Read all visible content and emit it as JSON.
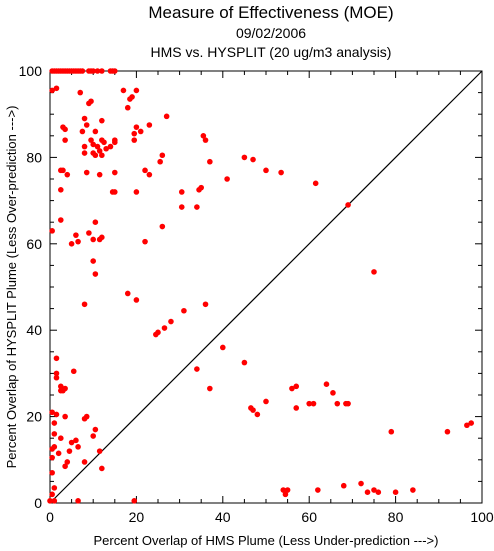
{
  "chart_data": {
    "type": "scatter",
    "title": "Measure of Effectiveness (MOE)",
    "subtitle_lines": [
      "09/02/2006",
      "HMS vs. HYSPLIT  (20 ug/m3 analysis)"
    ],
    "xlabel": "Percent Overlap of HMS Plume (Less Under-prediction --->)",
    "ylabel": "Percent Overlap of HYSPLIT Plume (Less Over-prediction --->)",
    "xlim": [
      0,
      100
    ],
    "ylim": [
      0,
      100
    ],
    "x_ticks": [
      0,
      20,
      40,
      60,
      80,
      100
    ],
    "y_ticks": [
      0,
      20,
      40,
      60,
      80,
      100
    ],
    "grid": false,
    "reference_line": {
      "from": [
        0,
        0
      ],
      "to": [
        100,
        100
      ],
      "color": "#000000"
    },
    "marker_color": "#ff0000",
    "series": [
      {
        "points": [
          [
            0.5,
            100
          ],
          [
            1,
            100
          ],
          [
            1.5,
            100
          ],
          [
            2,
            100
          ],
          [
            2.5,
            100
          ],
          [
            3,
            100
          ],
          [
            3.5,
            100
          ],
          [
            4,
            100
          ],
          [
            4.5,
            100
          ],
          [
            5,
            100
          ],
          [
            5.5,
            100
          ],
          [
            6,
            100
          ],
          [
            6.5,
            100
          ],
          [
            7,
            100
          ],
          [
            7.5,
            100
          ],
          [
            9,
            100
          ],
          [
            9.5,
            100
          ],
          [
            10,
            100
          ],
          [
            11,
            100
          ],
          [
            12,
            100
          ],
          [
            14,
            100
          ],
          [
            14.5,
            100
          ],
          [
            15,
            100
          ],
          [
            0.5,
            95.5
          ],
          [
            1.5,
            96
          ],
          [
            3,
            87
          ],
          [
            3.5,
            86.5
          ],
          [
            3.5,
            84
          ],
          [
            7,
            95
          ],
          [
            8,
            89
          ],
          [
            8.5,
            87.5
          ],
          [
            9,
            92.5
          ],
          [
            9.5,
            93
          ],
          [
            7.5,
            86
          ],
          [
            8,
            82.5
          ],
          [
            8,
            81
          ],
          [
            9.5,
            84
          ],
          [
            10,
            83
          ],
          [
            10,
            81
          ],
          [
            10.5,
            80.5
          ],
          [
            11,
            82.5
          ],
          [
            11.5,
            81.5
          ],
          [
            12,
            84
          ],
          [
            12.5,
            83.5
          ],
          [
            12,
            80.5
          ],
          [
            10.5,
            86
          ],
          [
            12,
            88.5
          ],
          [
            13,
            82
          ],
          [
            14,
            82.5
          ],
          [
            15,
            84
          ],
          [
            15,
            83.5
          ],
          [
            17,
            95.5
          ],
          [
            18,
            91.5
          ],
          [
            18.5,
            93.5
          ],
          [
            19,
            94
          ],
          [
            20,
            95.5
          ],
          [
            19.5,
            85.5
          ],
          [
            19.5,
            84
          ],
          [
            20,
            87
          ],
          [
            21,
            86
          ],
          [
            23,
            87.5
          ],
          [
            27,
            89.5
          ],
          [
            26,
            80.5
          ],
          [
            25.5,
            79
          ],
          [
            22,
            77
          ],
          [
            23,
            76
          ],
          [
            15,
            76.5
          ],
          [
            14.5,
            72
          ],
          [
            15,
            72
          ],
          [
            11.5,
            76
          ],
          [
            8.5,
            76.5
          ],
          [
            2.5,
            77
          ],
          [
            3,
            77
          ],
          [
            2.5,
            72.5
          ],
          [
            2.5,
            65.5
          ],
          [
            0.5,
            63
          ],
          [
            4,
            76
          ],
          [
            5,
            60
          ],
          [
            6,
            62
          ],
          [
            6.5,
            60.5
          ],
          [
            9,
            62.5
          ],
          [
            10,
            61
          ],
          [
            10.5,
            65
          ],
          [
            11.5,
            61
          ],
          [
            12,
            61.5
          ],
          [
            10,
            56
          ],
          [
            10.5,
            53
          ],
          [
            8,
            46
          ],
          [
            18,
            48.5
          ],
          [
            20,
            47
          ],
          [
            22,
            60.5
          ],
          [
            26,
            64
          ],
          [
            20,
            72
          ],
          [
            30.5,
            72
          ],
          [
            30.5,
            68.5
          ],
          [
            34.5,
            72.5
          ],
          [
            34,
            68.5
          ],
          [
            35,
            73
          ],
          [
            35.5,
            85
          ],
          [
            36,
            84
          ],
          [
            37,
            79
          ],
          [
            41,
            75
          ],
          [
            45,
            80
          ],
          [
            47,
            79.5
          ],
          [
            50,
            77
          ],
          [
            53.5,
            76.5
          ],
          [
            61.5,
            74
          ],
          [
            69,
            69
          ],
          [
            75,
            53.5
          ],
          [
            36,
            46
          ],
          [
            31,
            44.5
          ],
          [
            28,
            42
          ],
          [
            26.5,
            40.5
          ],
          [
            25,
            39.5
          ],
          [
            24.5,
            39
          ],
          [
            40,
            36
          ],
          [
            34,
            31
          ],
          [
            37,
            26.5
          ],
          [
            45,
            32.5
          ],
          [
            46.5,
            22
          ],
          [
            47,
            21.5
          ],
          [
            48,
            20.5
          ],
          [
            50,
            23.5
          ],
          [
            56,
            26.5
          ],
          [
            57,
            27
          ],
          [
            57,
            22
          ],
          [
            60,
            23
          ],
          [
            61,
            23
          ],
          [
            64,
            27.5
          ],
          [
            65.5,
            25.5
          ],
          [
            66.5,
            23
          ],
          [
            68.5,
            23
          ],
          [
            69,
            23
          ],
          [
            79,
            16.5
          ],
          [
            92,
            16.5
          ],
          [
            96.5,
            18
          ],
          [
            97.5,
            18.5
          ],
          [
            0.5,
            21
          ],
          [
            1.5,
            20.5
          ],
          [
            1,
            18.5
          ],
          [
            1,
            16
          ],
          [
            1,
            13
          ],
          [
            0.5,
            12.5
          ],
          [
            0.5,
            10.5
          ],
          [
            0.5,
            7
          ],
          [
            0.5,
            2
          ],
          [
            1,
            3.5
          ],
          [
            1.5,
            33.5
          ],
          [
            1.5,
            30
          ],
          [
            1.5,
            29
          ],
          [
            2.5,
            27
          ],
          [
            2.5,
            26
          ],
          [
            3,
            26
          ],
          [
            3.5,
            26.5
          ],
          [
            5.5,
            30.5
          ],
          [
            2,
            11.5
          ],
          [
            2.5,
            15
          ],
          [
            3.5,
            20
          ],
          [
            4,
            9.5
          ],
          [
            3.5,
            8.5
          ],
          [
            4.5,
            12
          ],
          [
            5,
            14
          ],
          [
            6,
            14.5
          ],
          [
            6.5,
            13
          ],
          [
            8.5,
            20
          ],
          [
            8,
            19.5
          ],
          [
            8,
            9.5
          ],
          [
            10,
            15.5
          ],
          [
            10.5,
            17
          ],
          [
            11.5,
            12
          ],
          [
            12,
            8
          ],
          [
            6.5,
            0.5
          ],
          [
            0,
            0.5
          ],
          [
            1,
            0.5
          ],
          [
            19.5,
            0.5
          ],
          [
            54,
            3
          ],
          [
            54.5,
            2
          ],
          [
            55,
            3
          ],
          [
            62,
            3
          ],
          [
            72,
            4.5
          ],
          [
            73.5,
            2.5
          ],
          [
            75,
            3
          ],
          [
            76,
            2.5
          ],
          [
            80,
            2.5
          ],
          [
            84,
            3
          ],
          [
            68,
            4
          ]
        ]
      }
    ]
  }
}
